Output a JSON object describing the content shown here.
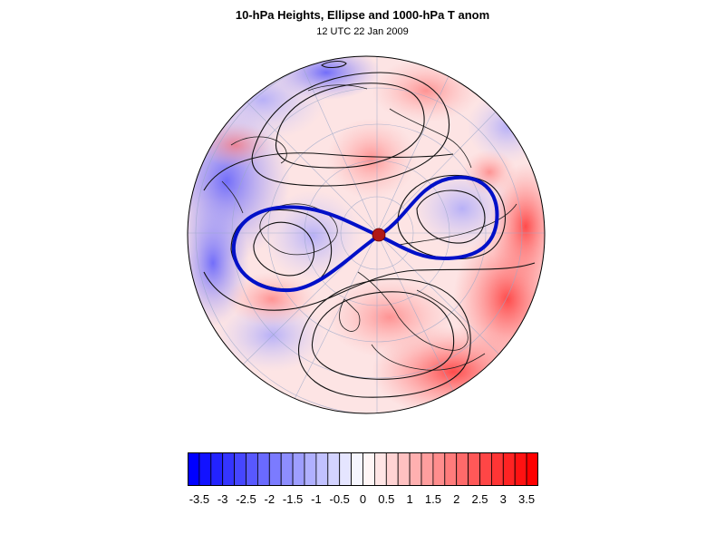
{
  "header": {
    "title": "10-hPa Heights, Ellipse and 1000-hPa T anom",
    "subtitle": "12 UTC 22 Jan 2009"
  },
  "map": {
    "projection": "north-polar-stereographic-orthographic",
    "field": "1000-hPa T anom",
    "contours": "10-hPa Heights",
    "ellipse_color": "#0010c8",
    "pole_marker_color": "#b01818"
  },
  "colorbar": {
    "min": -3.75,
    "max": 3.75,
    "step": 0.25,
    "low_color": "#0000ff",
    "mid_color": "#ffffff",
    "high_color": "#ff0000",
    "labels": [
      "-3.5",
      "-3",
      "-2.5",
      "-2",
      "-1.5",
      "-1",
      "-0.5",
      "0",
      "0.5",
      "1",
      "1.5",
      "2",
      "2.5",
      "3",
      "3.5"
    ]
  }
}
